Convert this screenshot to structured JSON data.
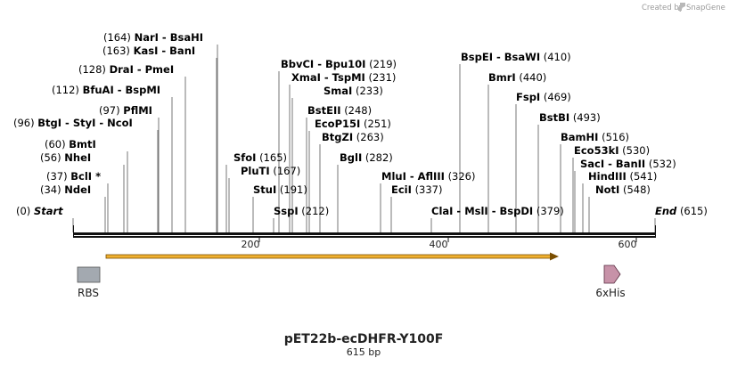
{
  "credit": {
    "prefix": "Created by",
    "brand": "SnapGene"
  },
  "plasmid": {
    "name": "pET22b-ecDHFR-Y100F",
    "length_label": "615 bp"
  },
  "ruler_ticks": [
    "200",
    "400",
    "600"
  ],
  "sites": [
    {
      "name": "Start",
      "pos": "(0)",
      "pos_first": true,
      "italic": true
    },
    {
      "name": "NdeI",
      "pos": "(34)",
      "pos_first": true
    },
    {
      "name": "BclI *",
      "pos": "(37)",
      "pos_first": true
    },
    {
      "name": "NheI",
      "pos": "(56)",
      "pos_first": true
    },
    {
      "name": "BmtI",
      "pos": "(60)",
      "pos_first": true
    },
    {
      "name": "BtgI  -  StyI  -  NcoI",
      "pos": "(96)",
      "pos_first": true
    },
    {
      "name": "PflMI",
      "pos": "(97)",
      "pos_first": true
    },
    {
      "name": "BfuAI  -  BspMI",
      "pos": "(112)",
      "pos_first": true
    },
    {
      "name": "DraI  -  PmeI",
      "pos": "(128)",
      "pos_first": true
    },
    {
      "name": "KasI  -  BanI",
      "pos": "(163)",
      "pos_first": true
    },
    {
      "name": "NarI  -  BsaHI",
      "pos": "(164)",
      "pos_first": true
    },
    {
      "name": "SfoI",
      "pos": "(165)",
      "pos_first": false
    },
    {
      "name": "PluTI",
      "pos": "(167)",
      "pos_first": false
    },
    {
      "name": "StuI",
      "pos": "(191)",
      "pos_first": false
    },
    {
      "name": "SspI",
      "pos": "(212)",
      "pos_first": false
    },
    {
      "name": "BbvCI  -  Bpu10I",
      "pos": "(219)",
      "pos_first": false
    },
    {
      "name": "XmaI  -  TspMI",
      "pos": "(231)",
      "pos_first": false
    },
    {
      "name": "SmaI",
      "pos": "(233)",
      "pos_first": false
    },
    {
      "name": "BstEII",
      "pos": "(248)",
      "pos_first": false
    },
    {
      "name": "EcoP15I",
      "pos": "(251)",
      "pos_first": false
    },
    {
      "name": "BtgZI",
      "pos": "(263)",
      "pos_first": false
    },
    {
      "name": "BglI",
      "pos": "(282)",
      "pos_first": false
    },
    {
      "name": "MluI  -  AflIII",
      "pos": "(326)",
      "pos_first": false
    },
    {
      "name": "EciI",
      "pos": "(337)",
      "pos_first": false
    },
    {
      "name": "ClaI  -  MslI  -  BspDI",
      "pos": "(379)",
      "pos_first": false
    },
    {
      "name": "BspEI  -  BsaWI",
      "pos": "(410)",
      "pos_first": false
    },
    {
      "name": "BmrI",
      "pos": "(440)",
      "pos_first": false
    },
    {
      "name": "FspI",
      "pos": "(469)",
      "pos_first": false
    },
    {
      "name": "BstBI",
      "pos": "(493)",
      "pos_first": false
    },
    {
      "name": "BamHI",
      "pos": "(516)",
      "pos_first": false
    },
    {
      "name": "Eco53kI",
      "pos": "(530)",
      "pos_first": false
    },
    {
      "name": "SacI  -  BanII",
      "pos": "(532)",
      "pos_first": false
    },
    {
      "name": "HindIII",
      "pos": "(541)",
      "pos_first": false
    },
    {
      "name": "NotI",
      "pos": "(548)",
      "pos_first": false
    },
    {
      "name": "End",
      "pos": "(615)",
      "pos_first": false,
      "italic": true
    }
  ],
  "features": [
    {
      "label": "RBS",
      "color": "#a3a9b0"
    },
    {
      "label": "",
      "color": "#f0b030"
    },
    {
      "label": "6xHis",
      "color": "#c792a8"
    }
  ]
}
